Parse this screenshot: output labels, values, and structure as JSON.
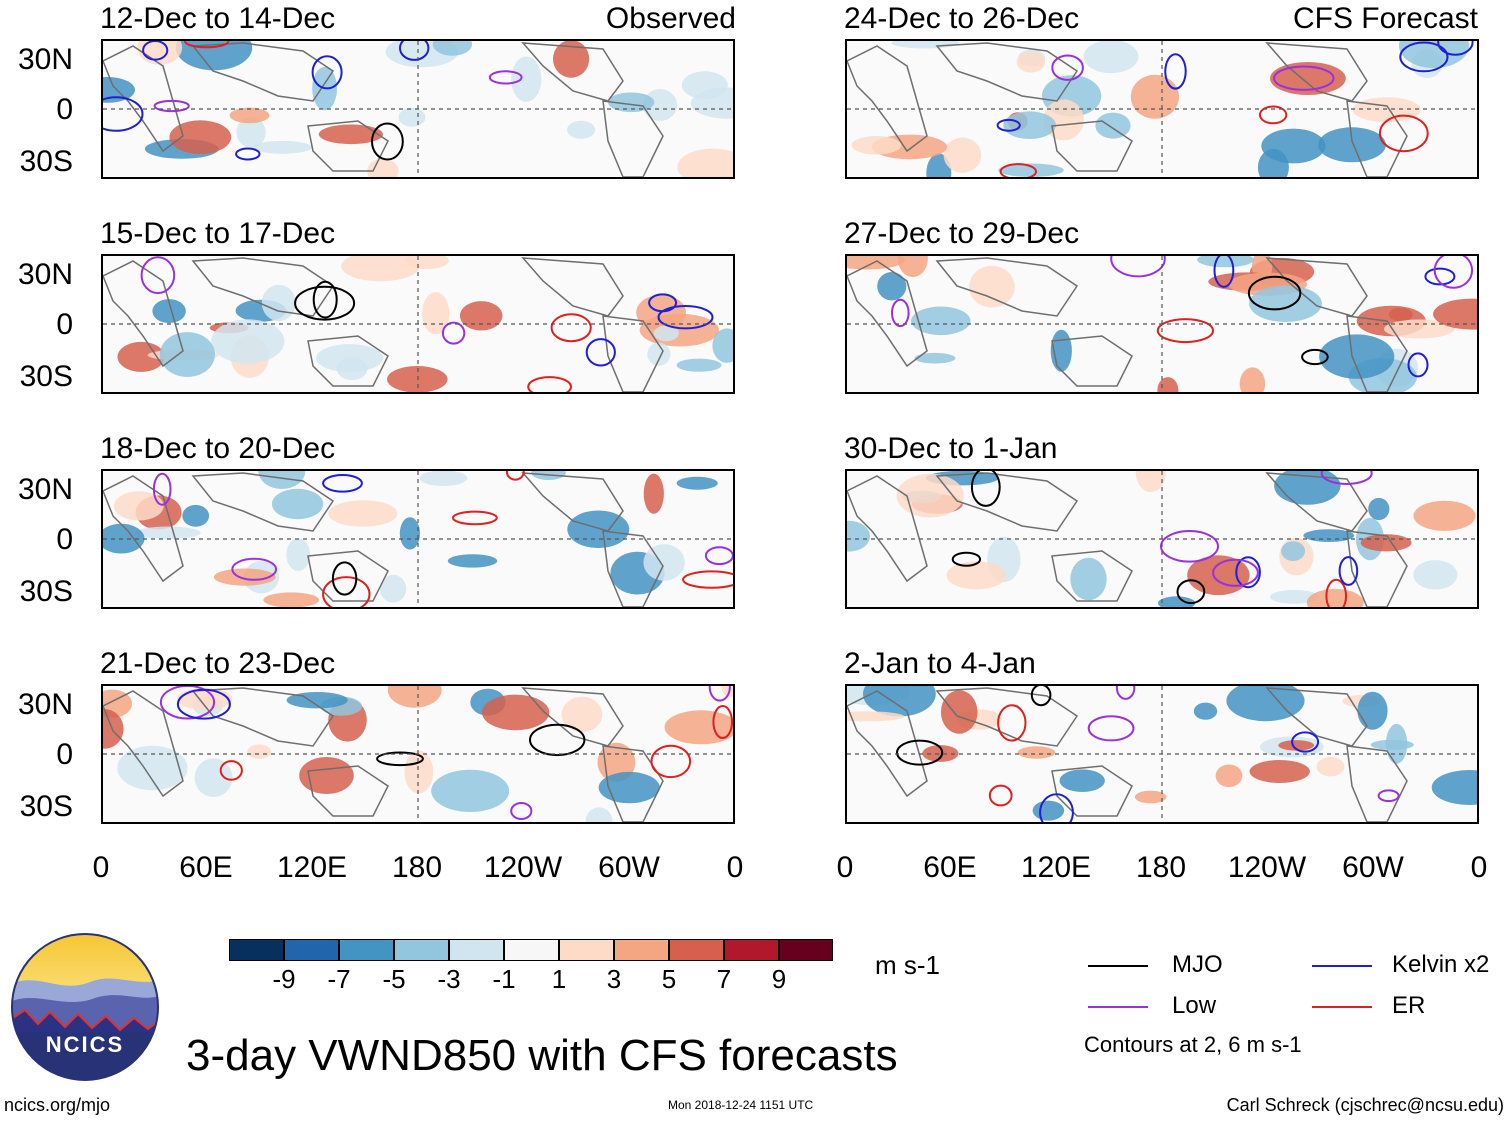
{
  "header": {
    "left_tag": "Observed",
    "right_tag": "CFS Forecast"
  },
  "panels_left": [
    {
      "title": "12-Dec to 14-Dec"
    },
    {
      "title": "15-Dec to 17-Dec"
    },
    {
      "title": "18-Dec to 20-Dec"
    },
    {
      "title": "21-Dec to 23-Dec"
    }
  ],
  "panels_right": [
    {
      "title": "24-Dec to 26-Dec"
    },
    {
      "title": "27-Dec to 29-Dec"
    },
    {
      "title": "30-Dec to 1-Jan"
    },
    {
      "title": "2-Jan to 4-Jan"
    }
  ],
  "y_axis": {
    "labels": [
      "30N",
      "0",
      "30S"
    ]
  },
  "x_axis": {
    "labels": [
      "0",
      "60E",
      "120E",
      "180",
      "120W",
      "60W",
      "0"
    ]
  },
  "colorbar": {
    "units": "m s-1",
    "labels": [
      "-9",
      "-7",
      "-5",
      "-3",
      "-1",
      "1",
      "3",
      "5",
      "7",
      "9"
    ],
    "colors": [
      "#08305e",
      "#2166ac",
      "#4393c3",
      "#92c5de",
      "#d1e5f0",
      "#f7f7f7",
      "#fddbc7",
      "#f4a582",
      "#d6604d",
      "#b2182b",
      "#67001f"
    ]
  },
  "legend": {
    "items": [
      {
        "label": "MJO",
        "color": "#000000"
      },
      {
        "label": "Kelvin x2",
        "color": "#1f1fd6"
      },
      {
        "label": "Low",
        "color": "#9a30e0"
      },
      {
        "label": "ER",
        "color": "#e01f1f"
      }
    ],
    "note": "Contours at 2, 6 m s-1"
  },
  "main_title": "3-day VWND850 with CFS forecasts",
  "logo": {
    "text": "NCICS"
  },
  "footer": {
    "url": "ncics.org/mjo",
    "timestamp": "Mon 2018-12-24 1151 UTC",
    "credit": "Carl Schreck (cjschrec@ncsu.edu)"
  }
}
